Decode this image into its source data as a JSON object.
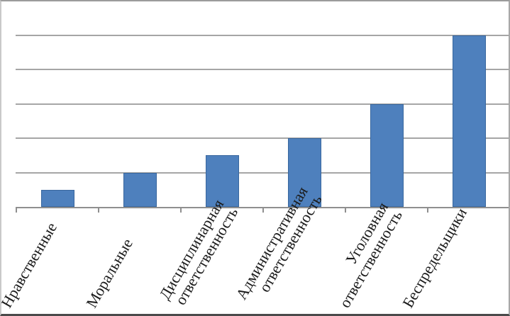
{
  "chart_data": {
    "type": "bar",
    "title": "",
    "xlabel": "",
    "ylabel": "",
    "categories": [
      "Нравственные",
      "Моральные",
      "Дисциплинарная\nответственность",
      "Административная\nответственность",
      "Уголовная\nответственность",
      "Беспредельщики"
    ],
    "values": [
      0.5,
      1,
      1.5,
      2,
      3,
      5
    ],
    "ylim": [
      0,
      6
    ],
    "gridline_step": 1,
    "grid": true,
    "legend": false,
    "y_tick_labels_visible": false,
    "x_label_rotation_deg": -60,
    "colors": {
      "bar_fill": "#4e80bd",
      "bar_border": "#39679e",
      "gridline": "#a6a6a6",
      "axis": "#8f8f8f",
      "label_text": "#1b1b1b"
    }
  }
}
